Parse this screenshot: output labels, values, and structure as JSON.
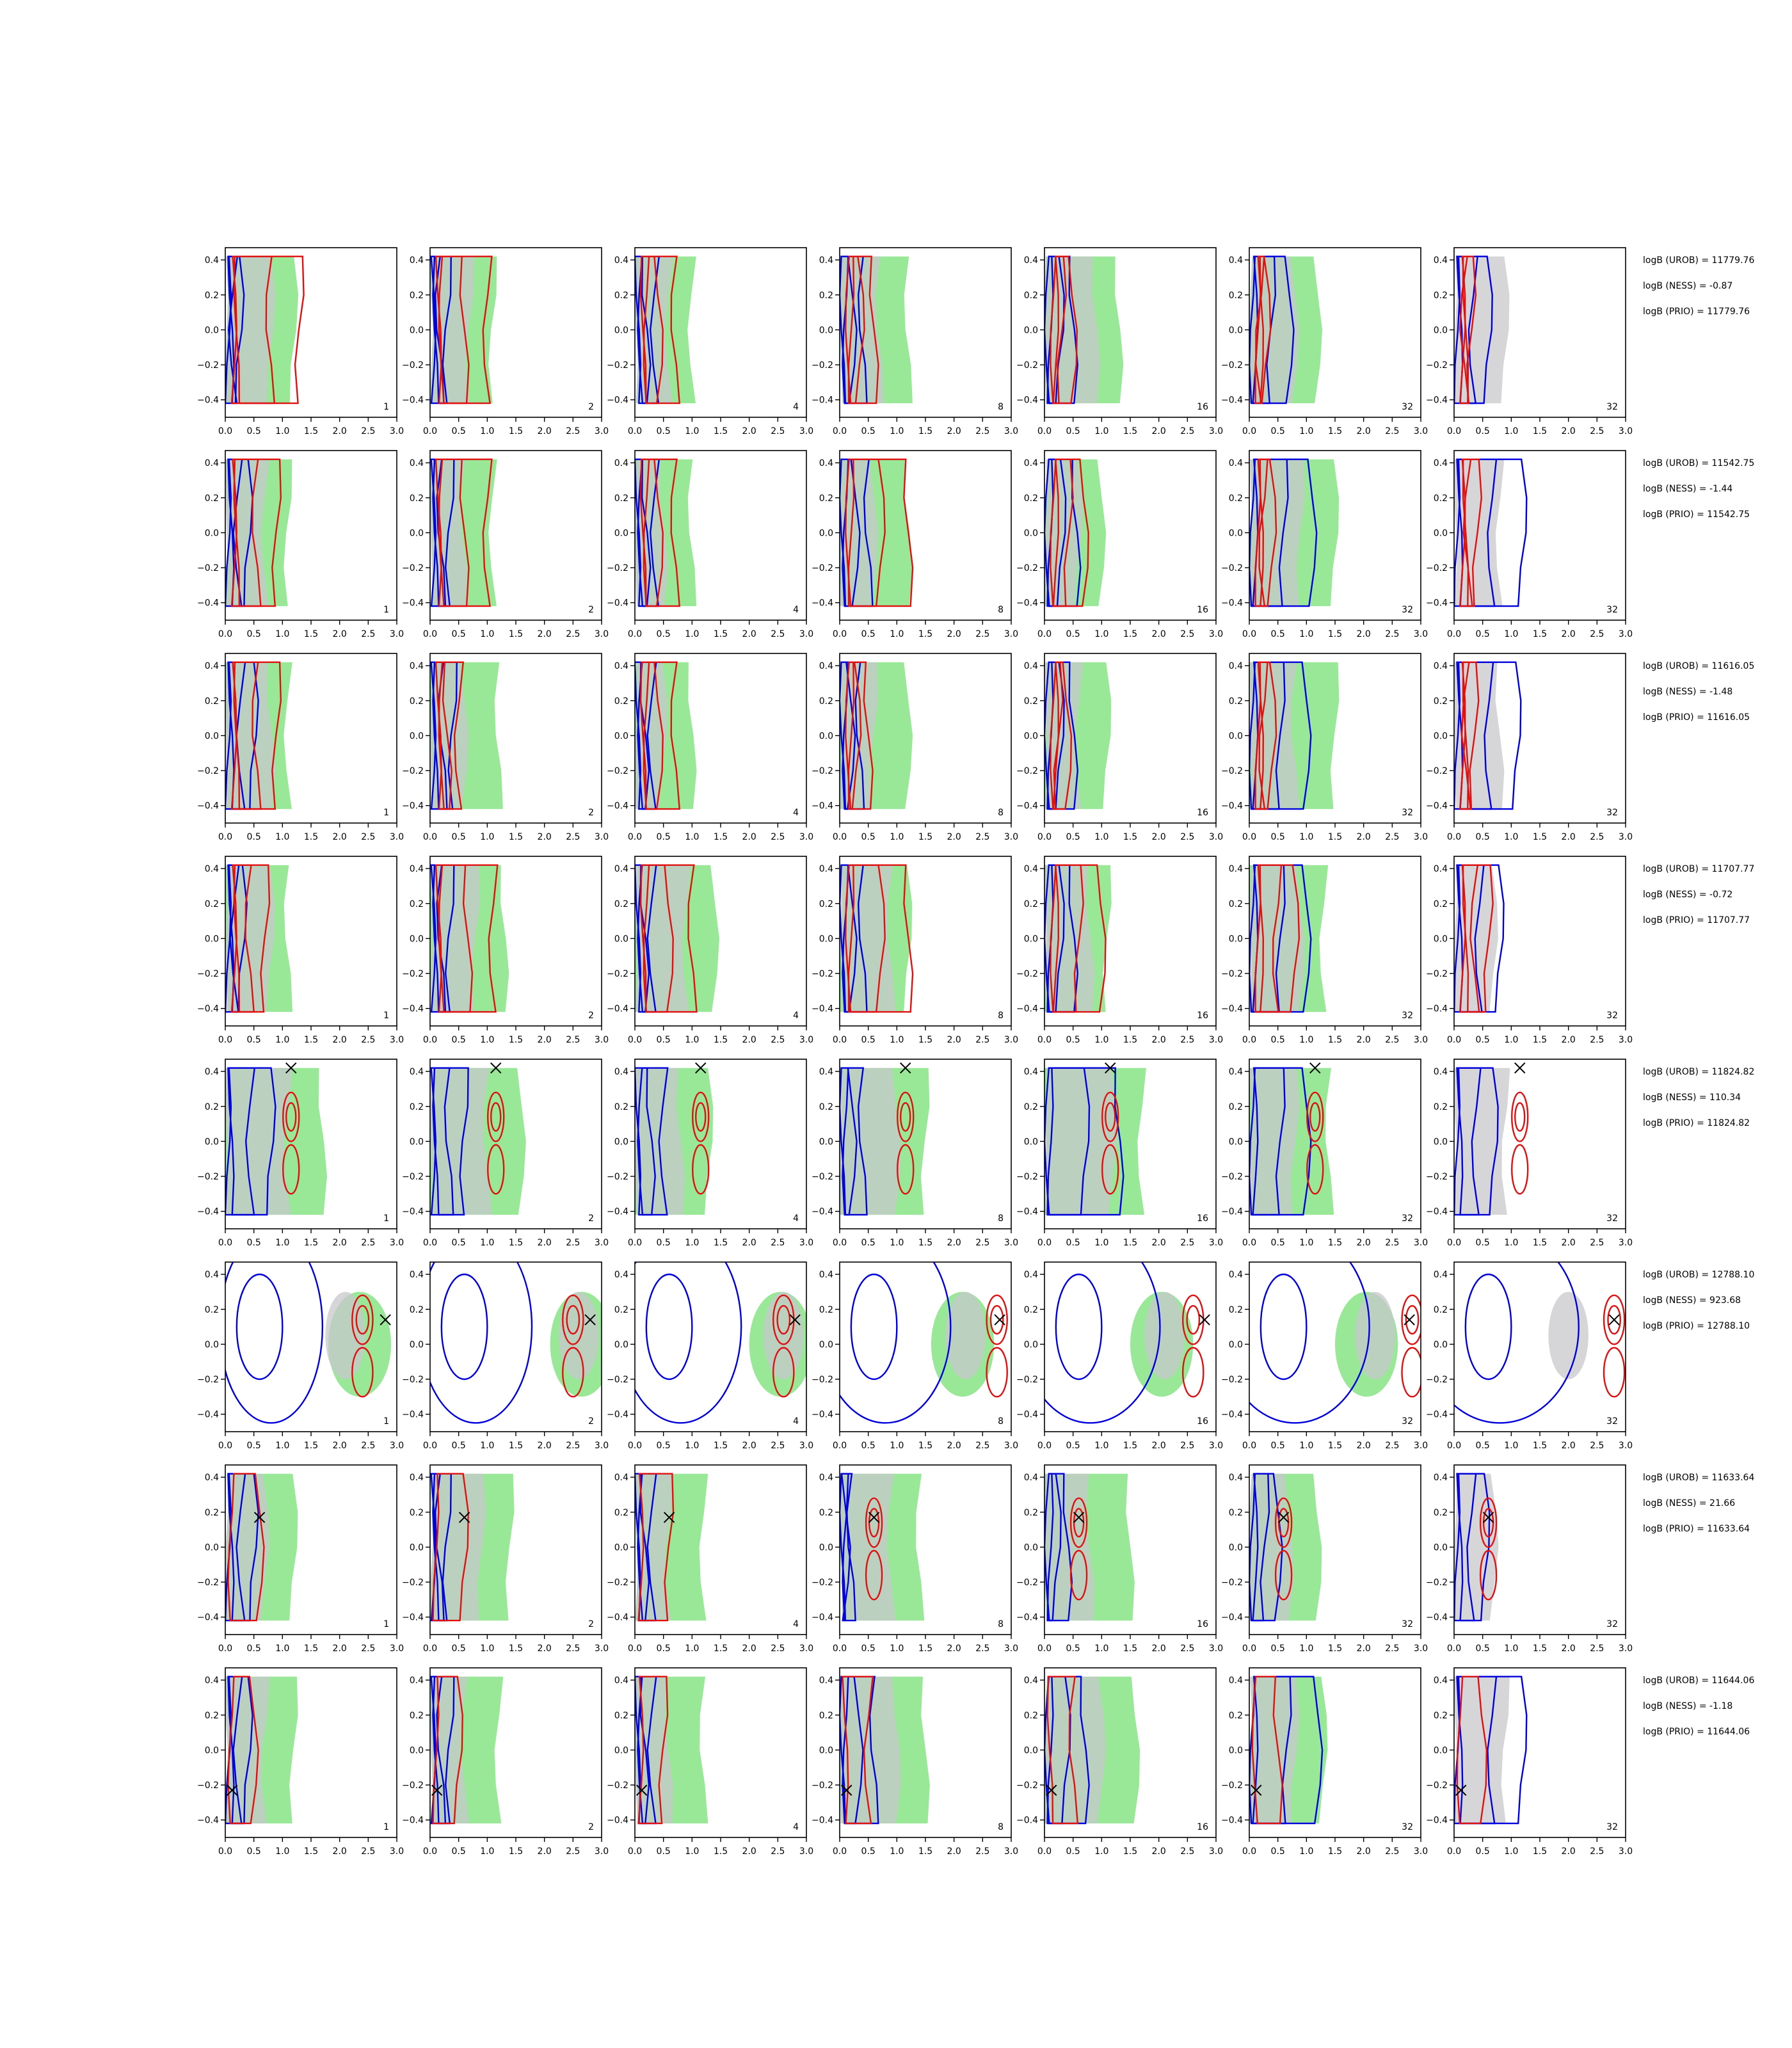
{
  "chart_data": {
    "type": "contour-grid",
    "xlim": [
      0,
      3
    ],
    "ylim": [
      -0.5,
      0.47
    ],
    "xticks": [
      "0.0",
      "0.5",
      "1.0",
      "1.5",
      "2.0",
      "2.5",
      "3.0"
    ],
    "yticks": [
      "0.4",
      "0.2",
      "0.0",
      "−0.2",
      "−0.4"
    ],
    "column_labels": [
      "1",
      "2",
      "4",
      "8",
      "16",
      "32",
      "32"
    ],
    "colors": {
      "blue": "#0000dd",
      "red": "#e01010",
      "green": "#98e898",
      "gray": "#c8c8cc",
      "marker": "#000000"
    },
    "rows": [
      {
        "stats": [
          "logB (UROB) = 11779.76",
          "logB (NESS) = -0.87",
          "logB (PRIO) = 11779.76"
        ],
        "marker": null,
        "blue_x": [
          0.25,
          0.3,
          0.35,
          0.4,
          0.5,
          0.7,
          0.6
        ],
        "red_x": [
          1.3,
          1.0,
          0.7,
          0.6,
          0.5,
          0.3,
          0.3
        ],
        "green_x": [
          1.2,
          1.1,
          1.0,
          1.2,
          1.3,
          1.2,
          0.0
        ],
        "gray_x": [
          0.8,
          0.7,
          0.6,
          0.7,
          0.9,
          0.8,
          0.9
        ]
      },
      {
        "stats": [
          "logB (UROB) = 11542.75",
          "logB (NESS) = -1.44",
          "logB (PRIO) = 11542.75"
        ],
        "marker": null,
        "blue_x": [
          0.4,
          0.35,
          0.35,
          0.5,
          0.55,
          1.1,
          1.2
        ],
        "red_x": [
          0.9,
          1.0,
          0.7,
          1.2,
          0.7,
          0.4,
          0.4
        ],
        "green_x": [
          1.1,
          1.1,
          1.0,
          1.2,
          1.0,
          1.5,
          0.0
        ],
        "gray_x": [
          0.7,
          0.6,
          0.5,
          0.6,
          0.6,
          0.9,
          0.8
        ]
      },
      {
        "stats": [
          "logB (UROB) = 11616.05",
          "logB (NESS) = -1.48",
          "logB (PRIO) = 11616.05"
        ],
        "marker": null,
        "blue_x": [
          0.5,
          0.4,
          0.3,
          0.35,
          0.5,
          1.0,
          1.1
        ],
        "red_x": [
          0.9,
          0.5,
          0.7,
          0.5,
          0.4,
          0.4,
          0.35
        ],
        "green_x": [
          1.1,
          1.2,
          1.0,
          1.2,
          1.1,
          1.5,
          0.0
        ],
        "gray_x": [
          0.8,
          0.6,
          0.5,
          0.6,
          0.6,
          0.8,
          0.8
        ]
      },
      {
        "stats": [
          "logB (UROB) = 11707.77",
          "logB (NESS) = -0.72",
          "logB (PRIO) = 11707.77"
        ],
        "marker": null,
        "blue_x": [
          0.3,
          0.35,
          0.3,
          0.4,
          0.5,
          1.0,
          0.8
        ],
        "red_x": [
          0.7,
          1.1,
          1.0,
          1.2,
          1.0,
          0.8,
          0.6
        ],
        "green_x": [
          1.1,
          1.3,
          1.4,
          1.2,
          1.1,
          1.3,
          0.0
        ],
        "gray_x": [
          0.8,
          0.8,
          0.9,
          0.9,
          0.8,
          0.9,
          0.7
        ]
      },
      {
        "stats": [
          "logB (UROB) = 11824.82",
          "logB (NESS) = 110.34",
          "logB (PRIO) = 11824.82"
        ],
        "marker": [
          1.15,
          0.42
        ],
        "blue_x": [
          0.8,
          0.6,
          0.5,
          0.4,
          1.3,
          1.0,
          0.7
        ],
        "red_x": [
          1.4,
          1.6,
          1.0,
          0.8,
          0.9,
          0.9,
          0.8
        ],
        "green_x": [
          1.7,
          1.6,
          1.3,
          1.5,
          1.7,
          1.4,
          0.0
        ],
        "gray_x": [
          1.1,
          1.0,
          0.8,
          1.0,
          1.2,
          0.8,
          0.9
        ]
      },
      {
        "stats": [
          "logB (UROB) = 12788.10",
          "logB (NESS) = 923.68",
          "logB (PRIO) = 12788.10"
        ],
        "marker": [
          2.8,
          0.14
        ],
        "blue_x": [
          0.5,
          0.6,
          0.6,
          0.0,
          0.0,
          1.5,
          1.2
        ],
        "red_x": [
          2.4,
          2.5,
          2.6,
          2.75,
          2.6,
          2.85,
          2.8
        ],
        "green_x": [
          2.1,
          2.4,
          2.3,
          1.9,
          1.8,
          1.8,
          0.0
        ],
        "gray_x": [
          2.1,
          2.6,
          2.6,
          2.2,
          2.1,
          2.2,
          2.0
        ]
      },
      {
        "stats": [
          "logB (UROB) = 11633.64",
          "logB (NESS) = 21.66",
          "logB (PRIO) = 11633.64"
        ],
        "marker": [
          0.6,
          0.17
        ],
        "blue_x": [
          0.5,
          0.3,
          0.3,
          0.2,
          0.4,
          0.5,
          0.55
        ],
        "red_x": [
          1.3,
          1.2,
          0.8,
          0.7,
          0.65,
          0.7,
          0.75
        ],
        "green_x": [
          1.2,
          1.4,
          1.2,
          1.4,
          1.5,
          1.2,
          0.0
        ],
        "gray_x": [
          0.7,
          0.9,
          0.6,
          0.9,
          0.8,
          0.7,
          0.7
        ]
      },
      {
        "stats": [
          "logB (UROB) = 11644.06",
          "logB (NESS) = -1.18",
          "logB (PRIO) = 11644.06"
        ],
        "marker": [
          0.12,
          -0.23
        ],
        "blue_x": [
          0.4,
          0.35,
          0.3,
          0.6,
          0.7,
          1.2,
          1.2
        ],
        "red_x": [
          1.0,
          0.7,
          0.7,
          1.1,
          0.9,
          0.4,
          0.3
        ],
        "green_x": [
          1.2,
          1.2,
          1.2,
          1.5,
          1.6,
          1.3,
          0.0
        ],
        "gray_x": [
          0.7,
          0.6,
          0.6,
          1.0,
          1.0,
          0.8,
          0.9
        ]
      }
    ]
  }
}
